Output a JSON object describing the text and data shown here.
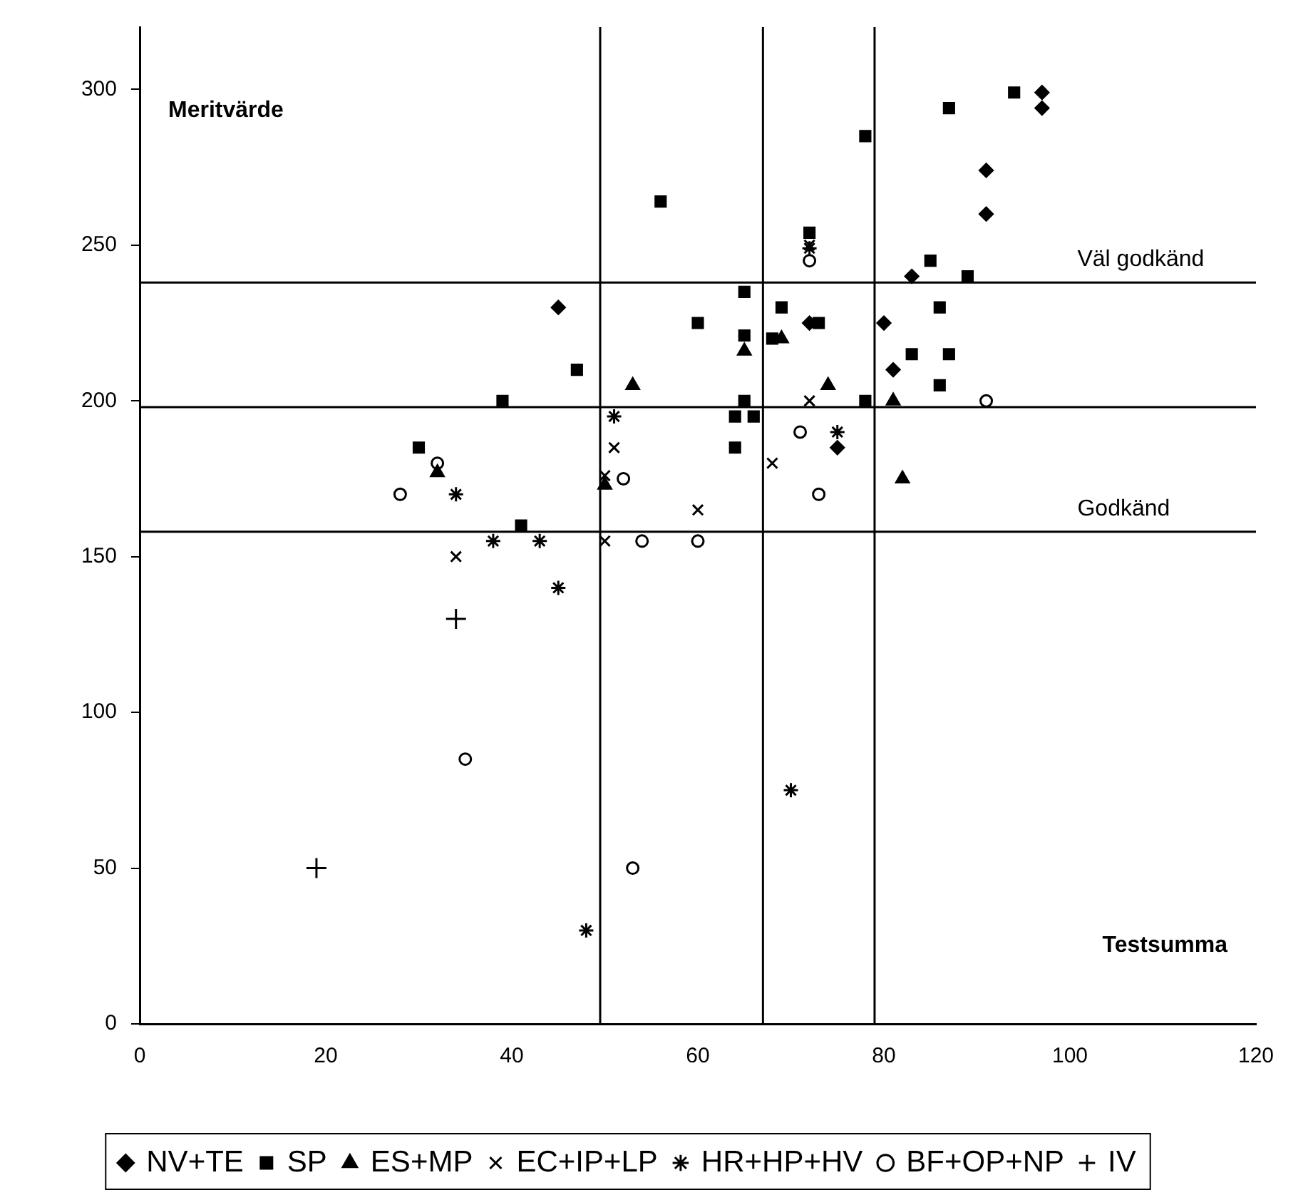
{
  "chart_data": {
    "type": "scatter",
    "xlabel": "Testsumma",
    "ylabel": "Meritvärde",
    "xlim": [
      0,
      120
    ],
    "xticks": [
      0,
      20,
      40,
      60,
      80,
      100,
      120
    ],
    "ylim": [
      0,
      320
    ],
    "yticks": [
      0,
      50,
      100,
      150,
      200,
      250,
      300
    ],
    "grid": false,
    "legend": "bottom",
    "ref_lines": [
      {
        "axis": "x",
        "value": 49.5
      },
      {
        "axis": "x",
        "value": 67
      },
      {
        "axis": "x",
        "value": 79
      },
      {
        "axis": "y",
        "value": 238,
        "label": "Väl godkänd"
      },
      {
        "axis": "y",
        "value": 198
      },
      {
        "axis": "y",
        "value": 158,
        "label": "Godkänd"
      }
    ],
    "series": [
      {
        "name": "NV+TE",
        "color": "#000000",
        "marker": "diamond",
        "x": [
          97,
          97,
          91,
          91,
          83,
          80,
          81,
          75,
          45,
          72
        ],
        "values": [
          299,
          294,
          274,
          260,
          240,
          225,
          210,
          185,
          230,
          225
        ]
      },
      {
        "name": "SP",
        "color": "#000000",
        "marker": "square",
        "x": [
          30,
          39,
          41,
          47,
          56,
          60,
          64,
          64,
          65,
          65,
          65,
          66,
          68,
          69,
          72,
          73,
          78,
          78,
          83,
          85,
          86,
          86,
          87,
          87,
          89,
          94
        ],
        "values": [
          185,
          200,
          160,
          210,
          264,
          225,
          195,
          185,
          235,
          221,
          200,
          195,
          220,
          230,
          254,
          225,
          285,
          200,
          215,
          245,
          230,
          205,
          294,
          215,
          240,
          299
        ]
      },
      {
        "name": "ES+MP",
        "color": "#000000",
        "marker": "triangle",
        "x": [
          32,
          50,
          53,
          65,
          69,
          74,
          81,
          82
        ],
        "values": [
          177,
          173,
          205,
          216,
          220,
          205,
          200,
          175
        ]
      },
      {
        "name": "EC+IP+LP",
        "color": "#000000",
        "marker": "x",
        "x": [
          34,
          51,
          50,
          50,
          60,
          68,
          72,
          72
        ],
        "values": [
          150,
          185,
          176,
          155,
          165,
          180,
          200,
          250
        ]
      },
      {
        "name": "HR+HP+HV",
        "color": "#000000",
        "marker": "cross",
        "x": [
          34,
          38,
          43,
          45,
          48,
          51,
          70,
          75,
          72
        ],
        "values": [
          170,
          155,
          155,
          140,
          30,
          195,
          75,
          190,
          249
        ]
      },
      {
        "name": "BF+OP+NP",
        "color": "#000000",
        "marker": "open-circle",
        "x": [
          28,
          32,
          52,
          54,
          60,
          35,
          53,
          71,
          73,
          72,
          91
        ],
        "values": [
          170,
          180,
          175,
          155,
          155,
          85,
          50,
          190,
          170,
          245,
          200
        ]
      },
      {
        "name": "IV",
        "color": "#000000",
        "marker": "plus",
        "x": [
          19,
          34
        ],
        "values": [
          50,
          130
        ]
      }
    ]
  }
}
